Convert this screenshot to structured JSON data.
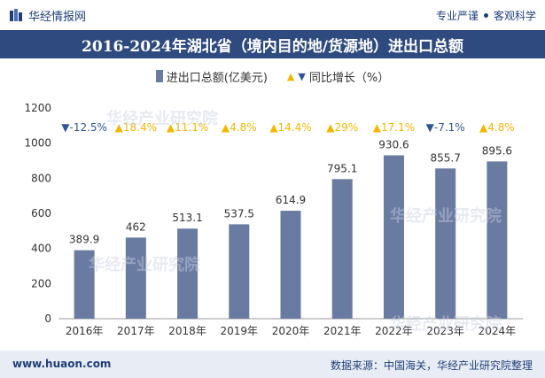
{
  "header": {
    "brand": "华经情报网",
    "slogan_left": "专业严谨",
    "slogan_right": "客观科学"
  },
  "footer": {
    "website": "www.huaon.com",
    "source": "数据来源：中国海关，华经产业研究院整理"
  },
  "watermark_text": "华经产业研究院",
  "colors": {
    "bar": "#6a7ba2",
    "up": "#f2b705",
    "down": "#2f5597",
    "title_bg": "#2f4a7e",
    "footer_bg": "#e8edf5"
  },
  "chart_data": {
    "type": "bar",
    "title": "2016-2024年湖北省（境内目的地/货源地）进出口总额",
    "legend": {
      "series_label": "进出口总额(亿美元)",
      "yoy_label": "同比增长（%）"
    },
    "categories": [
      "2016年",
      "2017年",
      "2018年",
      "2019年",
      "2020年",
      "2021年",
      "2022年",
      "2023年",
      "2024年"
    ],
    "values": [
      389.9,
      462,
      513.1,
      537.5,
      614.9,
      795.1,
      930.6,
      855.7,
      895.6
    ],
    "value_labels": [
      "389.9",
      "462",
      "513.1",
      "537.5",
      "614.9",
      "795.1",
      "930.6",
      "855.7",
      "895.6"
    ],
    "yoy": [
      -12.5,
      18.4,
      11.1,
      4.8,
      14.4,
      29,
      17.1,
      -7.1,
      4.8
    ],
    "yoy_labels": [
      "-12.5%",
      "18.4%",
      "11.1%",
      "4.8%",
      "14.4%",
      "29%",
      "17.1%",
      "-7.1%",
      "4.8%"
    ],
    "ylim": [
      0,
      1200
    ],
    "yticks": [
      0,
      200,
      400,
      600,
      800,
      1000,
      1200
    ],
    "xlabel": "",
    "ylabel": ""
  }
}
